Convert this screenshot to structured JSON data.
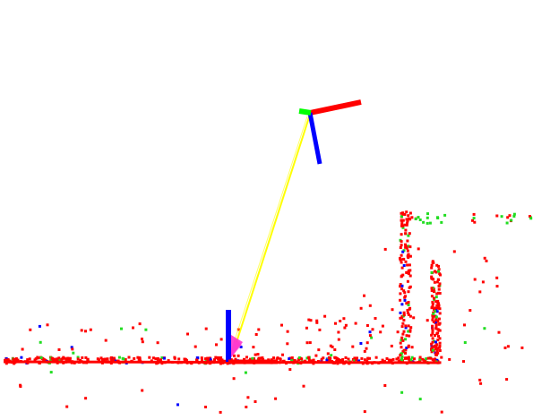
{
  "scene": {
    "background": "#ffffff",
    "colors": {
      "x_axis": "#ff0000",
      "y_axis": "#00ff00",
      "z_axis": "#0000ff",
      "trajectory": "#ffff00",
      "camera_marker": "#ff33cc",
      "floor_points": "#ff0000",
      "green_points": "#22dd22",
      "blue_points": "#0000ff"
    },
    "icons": {
      "pose_frame_upper": "coordinate-frame-icon",
      "pose_frame_lower": "coordinate-frame-icon",
      "camera": "camera-frustum-icon"
    }
  }
}
